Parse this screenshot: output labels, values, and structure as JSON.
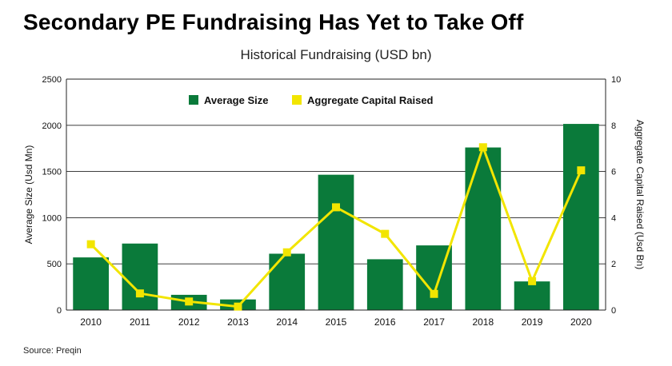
{
  "title": "Secondary PE Fundraising Has Yet to Take Off",
  "subtitle": "Historical Fundraising (USD bn)",
  "source": "Source: Preqin",
  "colors": {
    "bar": "#0a7a3a",
    "line": "#f2e500",
    "grid": "#222222"
  },
  "chart_data": {
    "type": "bar",
    "categories": [
      "2010",
      "2011",
      "2012",
      "2013",
      "2014",
      "2015",
      "2016",
      "2017",
      "2018",
      "2019",
      "2020"
    ],
    "series": [
      {
        "name": "Average Size",
        "type": "bar",
        "axis": "left",
        "values": [
          570,
          720,
          165,
          115,
          610,
          1465,
          550,
          700,
          1760,
          310,
          2015
        ]
      },
      {
        "name": "Aggregate Capital Raised",
        "type": "line",
        "axis": "right",
        "values": [
          2.85,
          0.72,
          0.37,
          0.15,
          2.5,
          4.45,
          3.3,
          0.7,
          7.05,
          1.25,
          6.05
        ]
      }
    ],
    "ylabel": "Average Size (Usd Mn)",
    "y2label": "Aggregate Capital Raised (Usd Bn)",
    "ylim": [
      0,
      2500
    ],
    "y2lim": [
      0,
      10
    ],
    "yticks": [
      "0",
      "500",
      "1000",
      "1500",
      "2000",
      "2500"
    ],
    "y2ticks": [
      "0",
      "2",
      "4",
      "6",
      "8",
      "10"
    ],
    "grid": true,
    "legend": "top-center"
  }
}
